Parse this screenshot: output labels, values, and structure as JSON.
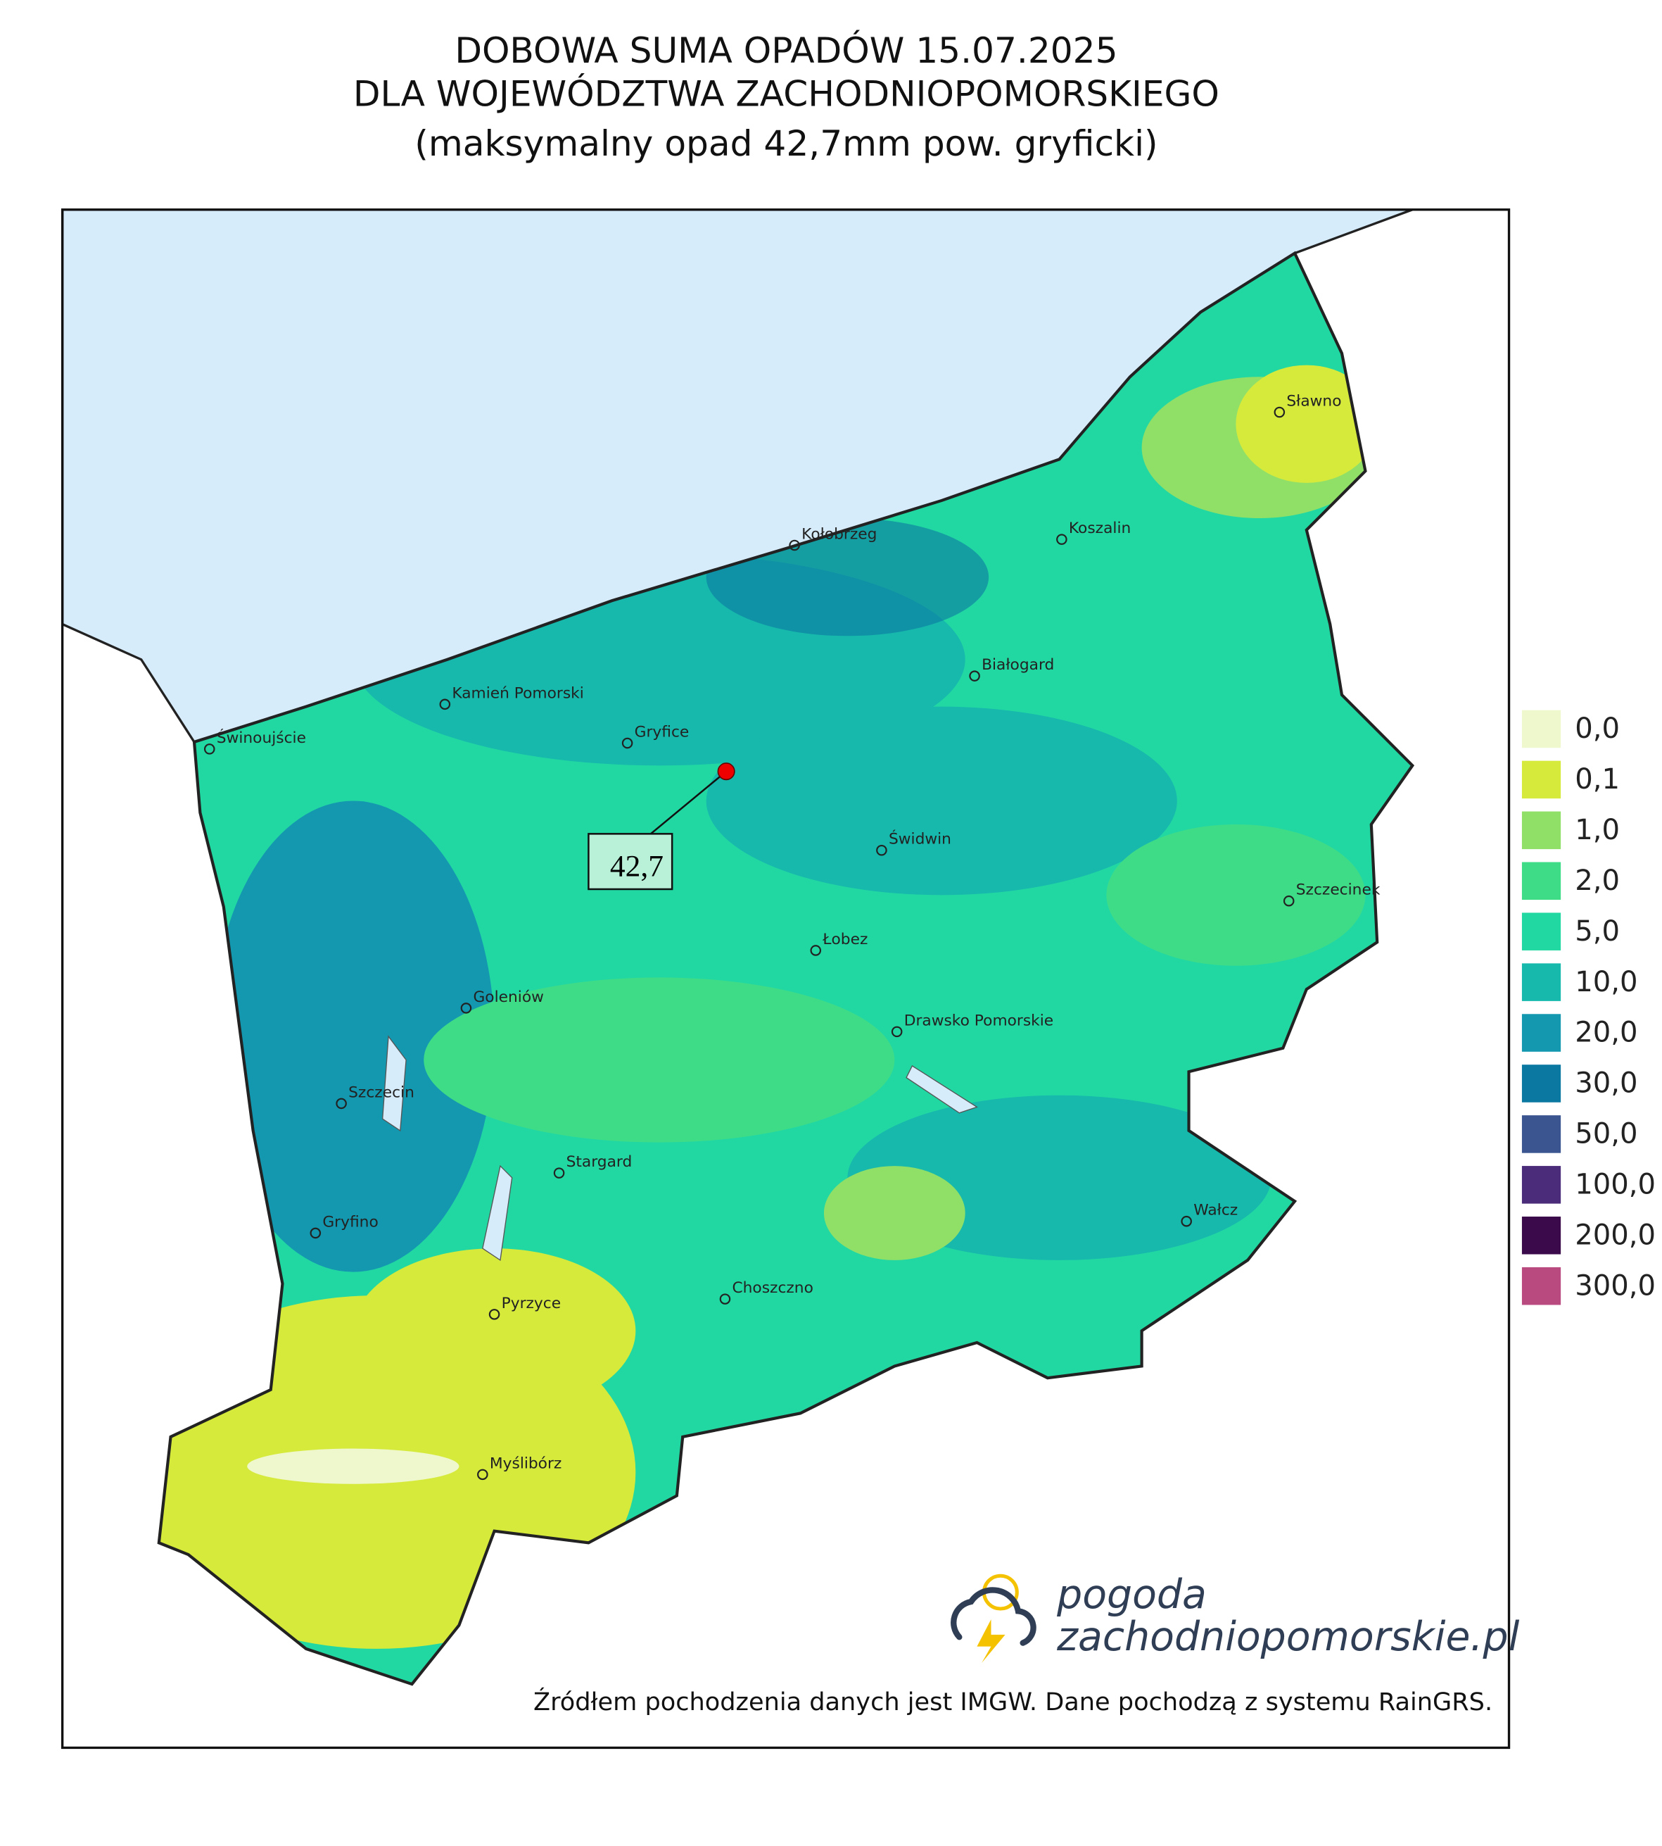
{
  "title": [
    "DOBOWA SUMA OPADÓW 15.07.2025",
    "DLA WOJEWÓDZTWA ZACHODNIOPOMORSKIEGO",
    "(maksymalny opad 42,7mm pow. gryficki)"
  ],
  "cities": [
    "Sławno",
    "Koszalin",
    "Kołobrzeg",
    "Białogard",
    "Kamień Pomorski",
    "Gryfice",
    "Świnoujście",
    "Świdwin",
    "Szczecinek",
    "Łobez",
    "Goleniów",
    "Drawsko Pomorskie",
    "Szczecin",
    "Stargard",
    "Wałcz",
    "Gryfino",
    "Choszczno",
    "Pyrzyce",
    "Myślibórz"
  ],
  "max_label": "42,7",
  "legend": [
    {
      "label": "0,0",
      "color": "#eef8cc"
    },
    {
      "label": "0,1",
      "color": "#d6ea3c"
    },
    {
      "label": "1,0",
      "color": "#90e068"
    },
    {
      "label": "2,0",
      "color": "#3fdc88"
    },
    {
      "label": "5,0",
      "color": "#22d8a2"
    },
    {
      "label": "10,0",
      "color": "#16b9ac"
    },
    {
      "label": "20,0",
      "color": "#1398b0"
    },
    {
      "label": "30,0",
      "color": "#0b78a2"
    },
    {
      "label": "50,0",
      "color": "#3a5590"
    },
    {
      "label": "100,0",
      "color": "#4a2c7a"
    },
    {
      "label": "200,0",
      "color": "#3a0a4a"
    },
    {
      "label": "300,0",
      "color": "#b84a80"
    }
  ],
  "logo": [
    "pogoda",
    "zachodniopomorskie.pl"
  ],
  "source": "Źródłem pochodzenia danych jest IMGW. Dane pochodzą z systemu RainGRS."
}
